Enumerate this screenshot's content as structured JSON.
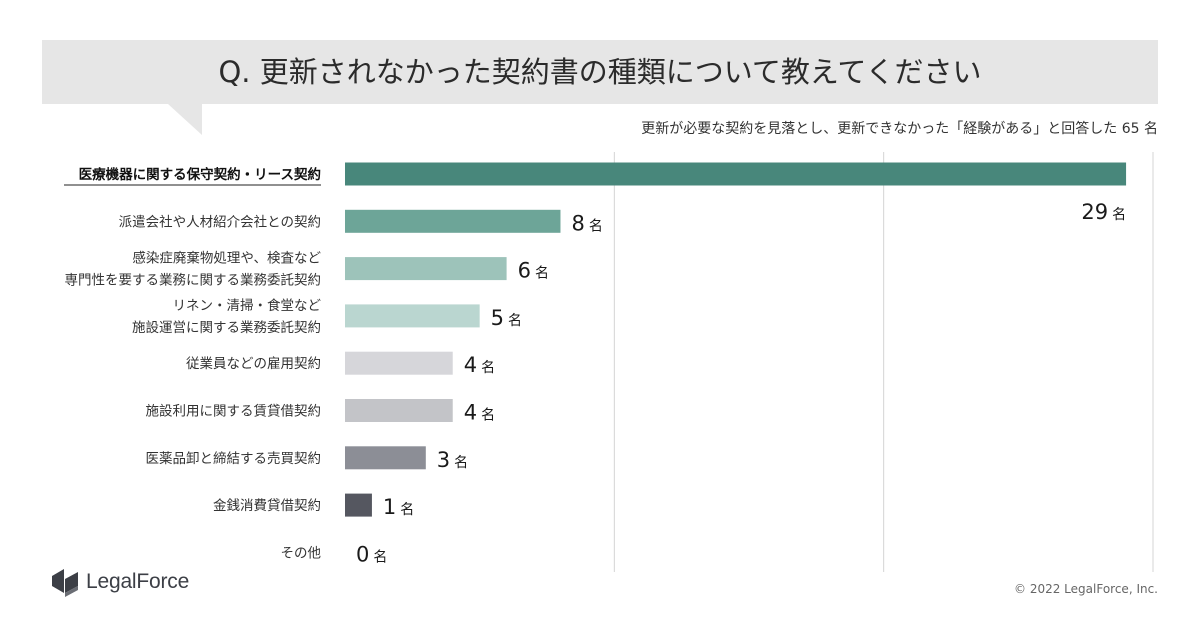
{
  "title": "Q. 更新されなかった契約書の種類について教えてください",
  "subtitle": "更新が必要な契約を見落とし、更新できなかった「経験がある」と回答した 65 名",
  "brand": {
    "name": "LegalForce"
  },
  "copyright": "© 2022 LegalForce, Inc.",
  "chart_data": {
    "type": "bar",
    "orientation": "horizontal",
    "unit": "名",
    "xlim": [
      0,
      30
    ],
    "grid": true,
    "categories": [
      {
        "lines": [
          "医療機器に関する保守契約・リース契約"
        ],
        "value": 29,
        "color": "#48877b",
        "highlight": true
      },
      {
        "lines": [
          "派遣会社や人材紹介会社との契約"
        ],
        "value": 8,
        "color": "#6da598",
        "highlight": false
      },
      {
        "lines": [
          "感染症廃棄物処理や、検査など",
          "専門性を要する業務に関する業務委託契約"
        ],
        "value": 6,
        "color": "#9dc3ba",
        "highlight": false
      },
      {
        "lines": [
          "リネン・清掃・食堂など",
          "施設運営に関する業務委託契約"
        ],
        "value": 5,
        "color": "#bad6d0",
        "highlight": false
      },
      {
        "lines": [
          "従業員などの雇用契約"
        ],
        "value": 4,
        "color": "#d6d6da",
        "highlight": false
      },
      {
        "lines": [
          "施設利用に関する賃貸借契約"
        ],
        "value": 4,
        "color": "#c3c4c8",
        "highlight": false
      },
      {
        "lines": [
          "医薬品卸と締結する売買契約"
        ],
        "value": 3,
        "color": "#8c8e96",
        "highlight": false
      },
      {
        "lines": [
          "金銭消費貸借契約"
        ],
        "value": 1,
        "color": "#555760",
        "highlight": false
      },
      {
        "lines": [
          "その他"
        ],
        "value": 0,
        "color": "#555760",
        "highlight": false
      }
    ]
  }
}
